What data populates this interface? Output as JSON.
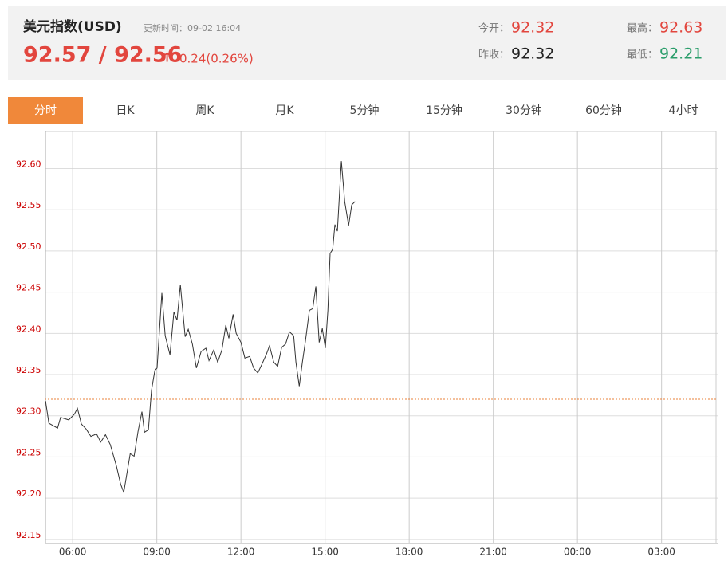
{
  "header": {
    "title": "美元指数(USD)",
    "update_time": "更新时间：09-02 16:04",
    "price": "92.57 / 92.56",
    "arrow": "↑",
    "change": "0.24(0.26%)",
    "stats": [
      {
        "label": "今开：",
        "value": "92.32"
      },
      {
        "label": "昨收：",
        "value": "92.32"
      },
      {
        "label": "最高：",
        "value": "92.63"
      },
      {
        "label": "最低：",
        "value": "92.21"
      }
    ]
  },
  "tabs": [
    "分时",
    "日K",
    "周K",
    "月K",
    "5分钟",
    "15分钟",
    "30分钟",
    "60分钟",
    "4小时"
  ],
  "chart_data": {
    "type": "line",
    "x": [
      5.03,
      5.15,
      5.46,
      5.57,
      5.86,
      6.06,
      6.17,
      6.31,
      6.48,
      6.65,
      6.85,
      7.0,
      7.17,
      7.34,
      7.56,
      7.71,
      7.82,
      7.93,
      8.05,
      8.19,
      8.33,
      8.47,
      8.56,
      8.7,
      8.81,
      8.93,
      9.01,
      9.18,
      9.3,
      9.47,
      9.61,
      9.72,
      9.84,
      10.01,
      10.12,
      10.27,
      10.41,
      10.58,
      10.75,
      10.86,
      11.03,
      11.17,
      11.32,
      11.46,
      11.57,
      11.72,
      11.83,
      12.0,
      12.14,
      12.31,
      12.45,
      12.6,
      12.74,
      12.91,
      13.02,
      13.17,
      13.31,
      13.45,
      13.59,
      13.73,
      13.88,
      13.96,
      14.08,
      14.19,
      14.3,
      14.44,
      14.56,
      14.67,
      14.79,
      14.9,
      15.01,
      15.1,
      15.18,
      15.27,
      15.35,
      15.44,
      15.58,
      15.7,
      15.84,
      15.95,
      16.07
    ],
    "series": [
      {
        "color": "#333333",
        "values": [
          92.318,
          92.291,
          92.285,
          92.298,
          92.295,
          92.302,
          92.309,
          92.29,
          92.284,
          92.275,
          92.278,
          92.268,
          92.277,
          92.265,
          92.239,
          92.217,
          92.207,
          92.229,
          92.254,
          92.251,
          92.281,
          92.305,
          92.28,
          92.283,
          92.331,
          92.355,
          92.358,
          92.449,
          92.397,
          92.374,
          92.426,
          92.416,
          92.459,
          92.396,
          92.405,
          92.387,
          92.358,
          92.378,
          92.382,
          92.367,
          92.38,
          92.365,
          92.38,
          92.41,
          92.394,
          92.423,
          92.4,
          92.389,
          92.37,
          92.372,
          92.358,
          92.352,
          92.362,
          92.375,
          92.385,
          92.365,
          92.36,
          92.383,
          92.387,
          92.402,
          92.397,
          92.365,
          92.336,
          92.365,
          92.391,
          92.428,
          92.43,
          92.457,
          92.389,
          92.406,
          92.382,
          92.428,
          92.497,
          92.502,
          92.532,
          92.524,
          92.609,
          92.56,
          92.531,
          92.556,
          92.56
        ]
      }
    ],
    "reference_line": {
      "value": 92.32,
      "color": "#e8803a"
    },
    "xlim": [
      5,
      29
    ],
    "xticks": [
      {
        "value": 6,
        "label": "06:00"
      },
      {
        "value": 9,
        "label": "09:00"
      },
      {
        "value": 12,
        "label": "12:00"
      },
      {
        "value": 15,
        "label": "15:00"
      },
      {
        "value": 18,
        "label": "18:00"
      },
      {
        "value": 21,
        "label": "21:00"
      },
      {
        "value": 24,
        "label": "00:00"
      },
      {
        "value": 27,
        "label": "03:00"
      }
    ],
    "ylim": [
      92.145,
      92.645
    ],
    "yticks": [
      92.15,
      {
        "value": 92.2,
        "label": "92.20"
      },
      92.25,
      {
        "value": 92.3,
        "label": "92.30"
      },
      92.35,
      {
        "value": 92.4,
        "label": "92.40"
      },
      92.45,
      {
        "value": 92.5,
        "label": "92.50"
      },
      92.55,
      {
        "value": 92.6,
        "label": "92.60"
      }
    ],
    "grid": true
  }
}
